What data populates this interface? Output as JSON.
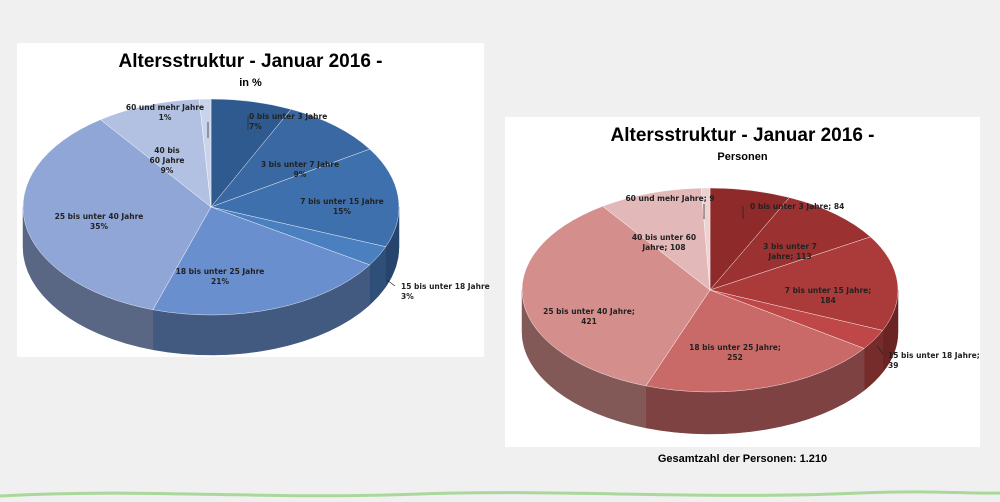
{
  "left_chart": {
    "title": "Altersstruktur - Januar 2016 -",
    "subtitle": "in %"
  },
  "right_chart": {
    "title": "Altersstruktur - Januar 2016 -",
    "subtitle": "Personen"
  },
  "total_caption": "Gesamtzahl der Personen: 1.210",
  "colors": {
    "left_base": "#4f81bd",
    "right_base": "#c0504d"
  },
  "chart_data": [
    {
      "type": "pie",
      "style": "3d",
      "title": "Altersstruktur - Januar 2016 -",
      "subtitle": "in %",
      "unit": "%",
      "categories": [
        "0 bis unter 3 Jahre",
        "3 bis unter 7 Jahre",
        "7 bis unter 15 Jahre",
        "15 bis unter 18 Jahre",
        "18 bis unter 25 Jahre",
        "25 bis unter 40 Jahre",
        "40 bis unter 60 Jahre",
        "60 und mehr Jahre"
      ],
      "values": [
        7,
        9,
        15,
        3,
        21,
        35,
        9,
        1
      ],
      "labels": [
        [
          "0 bis unter 3 Jahre",
          "7%"
        ],
        [
          "3 bis unter 7 Jahre",
          "9%"
        ],
        [
          "7 bis unter 15 Jahre",
          "15%"
        ],
        [
          "15 bis unter 18 Jahre",
          "3%"
        ],
        [
          "18 bis unter 25 Jahre",
          "21%"
        ],
        [
          "25 bis unter 40 Jahre",
          "35%"
        ],
        [
          "40 bis",
          "60 Jahre",
          "9%"
        ],
        [
          "60 und mehr Jahre",
          "1%"
        ]
      ],
      "colors": [
        "#2f5a8f",
        "#3a68a2",
        "#3f70ae",
        "#4a7fc0",
        "#6a8fcf",
        "#8fa6d6",
        "#b2c0e2",
        "#c9d3ec"
      ]
    },
    {
      "type": "pie",
      "style": "3d",
      "title": "Altersstruktur - Januar 2016 -",
      "subtitle": "Personen",
      "unit": "Personen",
      "categories": [
        "0 bis unter 3 Jahre",
        "3 bis unter 7 Jahre",
        "7 bis unter 15 Jahre",
        "15 bis unter 18 Jahre",
        "18 bis unter 25 Jahre",
        "25 bis unter 40 Jahre",
        "40 bis unter 60 Jahre",
        "60 und mehr Jahre"
      ],
      "values": [
        84,
        113,
        184,
        39,
        252,
        421,
        108,
        9
      ],
      "labels": [
        [
          "0 bis unter 3 Jahre; 84"
        ],
        [
          "3 bis unter 7",
          "Jahre; 113"
        ],
        [
          "7 bis unter 15 Jahre;",
          "184"
        ],
        [
          "15 bis unter 18 Jahre;",
          "39"
        ],
        [
          "18 bis unter 25 Jahre;",
          "252"
        ],
        [
          "25 bis unter 40 Jahre;",
          "421"
        ],
        [
          "40 bis unter 60",
          "Jahre; 108"
        ],
        [
          "60 und mehr Jahre; 9"
        ]
      ],
      "colors": [
        "#8e2a2a",
        "#9c3131",
        "#ab3a3a",
        "#c04747",
        "#c96a69",
        "#d48f8d",
        "#e2b9b8",
        "#ecd2d1"
      ]
    }
  ]
}
